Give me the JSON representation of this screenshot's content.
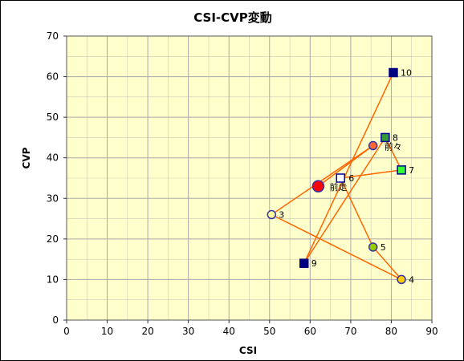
{
  "chart_data": {
    "type": "scatter",
    "title": "CSI-CVP変動",
    "xlabel": "CSI",
    "ylabel": "CVP",
    "xlim": [
      0,
      90
    ],
    "ylim": [
      0,
      70
    ],
    "xticks": [
      "0",
      "10",
      "20",
      "30",
      "40",
      "50",
      "60",
      "70",
      "80",
      "90"
    ],
    "yticks": [
      "0",
      "10",
      "20",
      "30",
      "40",
      "50",
      "60",
      "70"
    ],
    "grid": true,
    "plot_background": "#FFFFCC",
    "grid_color": "#AAAAAA",
    "line_color": "#FF6600",
    "points": [
      {
        "label": "前走",
        "x": 62,
        "y": 33,
        "shape": "circle-large",
        "fill": "#FF0000",
        "stroke": "#3333AA"
      },
      {
        "label": "前々",
        "x": 75.5,
        "y": 43,
        "shape": "circle",
        "fill": "#FF6633",
        "stroke": "#3333AA"
      },
      {
        "label": "3",
        "x": 50.5,
        "y": 26,
        "shape": "circle",
        "fill": "#FFFF99",
        "stroke": "#3333AA"
      },
      {
        "label": "4",
        "x": 82.5,
        "y": 10,
        "shape": "circle",
        "fill": "#FFCC00",
        "stroke": "#3333AA"
      },
      {
        "label": "5",
        "x": 75.5,
        "y": 18,
        "shape": "circle",
        "fill": "#99CC00",
        "stroke": "#3333AA"
      },
      {
        "label": "6",
        "x": 67.5,
        "y": 35,
        "shape": "square",
        "fill": "#FFFFFF",
        "stroke": "#000099"
      },
      {
        "label": "7",
        "x": 82.5,
        "y": 37,
        "shape": "square",
        "fill": "#33FF33",
        "stroke": "#000099"
      },
      {
        "label": "8",
        "x": 78.5,
        "y": 45,
        "shape": "square",
        "fill": "#339933",
        "stroke": "#000099"
      },
      {
        "label": "9",
        "x": 58.5,
        "y": 14,
        "shape": "square",
        "fill": "#000080",
        "stroke": "#000080"
      },
      {
        "label": "10",
        "x": 80.5,
        "y": 61,
        "shape": "square",
        "fill": "#000080",
        "stroke": "#000080"
      }
    ]
  }
}
